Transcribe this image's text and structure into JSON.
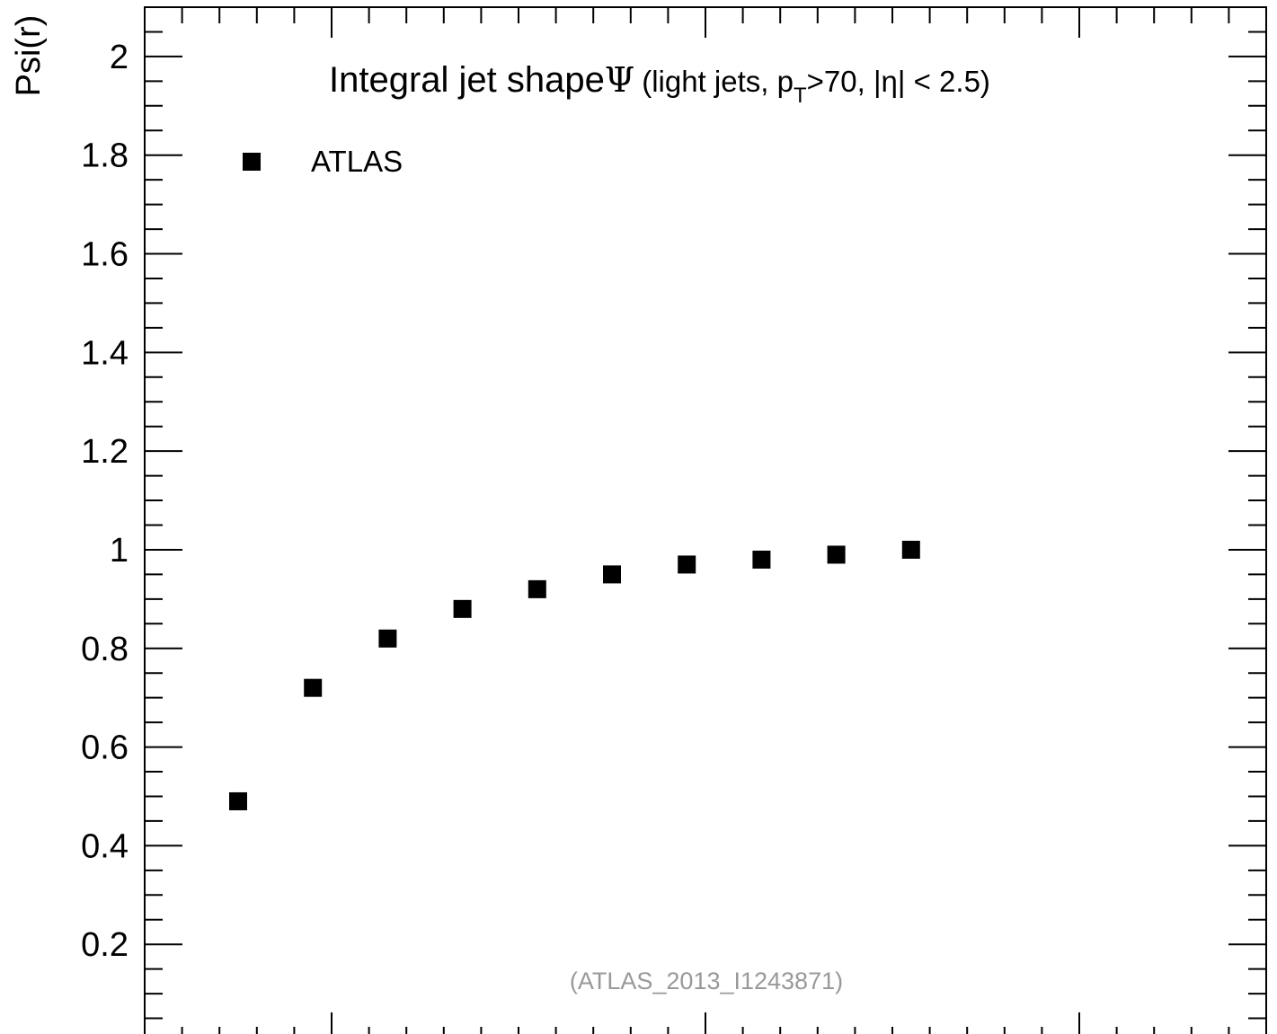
{
  "chart_data": {
    "type": "scatter",
    "title": {
      "main": "Integral jet shape",
      "symbol": "Ψ",
      "sub_open": "(light jets, p",
      "sub_subscript": "T",
      "sub_mid": ">70, |η| < 2.5)"
    },
    "ylabel": "Psi(r)",
    "xlabel": "",
    "xlim": [
      0,
      0.6
    ],
    "ylim": [
      0,
      2.1
    ],
    "y_ticks": [
      {
        "value": 0.2,
        "label": "0.2"
      },
      {
        "value": 0.4,
        "label": "0.4"
      },
      {
        "value": 0.6,
        "label": "0.6"
      },
      {
        "value": 0.8,
        "label": "0.8"
      },
      {
        "value": 1.0,
        "label": "1"
      },
      {
        "value": 1.2,
        "label": "1.2"
      },
      {
        "value": 1.4,
        "label": "1.4"
      },
      {
        "value": 1.6,
        "label": "1.6"
      },
      {
        "value": 1.8,
        "label": "1.8"
      },
      {
        "value": 2.0,
        "label": "2"
      }
    ],
    "x_major_ticks": [
      0.1,
      0.3,
      0.5
    ],
    "x_minor_step": 0.02,
    "y_minor_step": 0.05,
    "grid": false,
    "legend": {
      "placement": "top-left",
      "entries": [
        {
          "label": "ATLAS",
          "marker": "square"
        }
      ]
    },
    "series": [
      {
        "name": "ATLAS",
        "color": "#000000",
        "x": [
          0.05,
          0.09,
          0.13,
          0.17,
          0.21,
          0.25,
          0.29,
          0.33,
          0.37,
          0.41
        ],
        "y": [
          0.49,
          0.72,
          0.82,
          0.88,
          0.92,
          0.95,
          0.97,
          0.98,
          0.99,
          1.0
        ]
      }
    ],
    "annotation": "(ATLAS_2013_I1243871)"
  }
}
